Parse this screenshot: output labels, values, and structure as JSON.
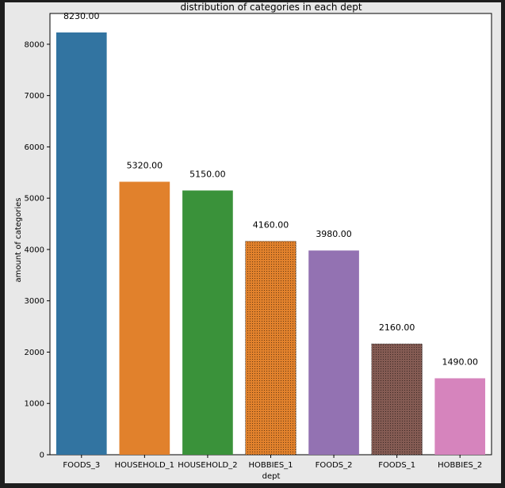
{
  "chart_data": {
    "type": "bar",
    "title": "distribution of categories in each dept",
    "xlabel": "dept",
    "ylabel": "amount of categories",
    "categories": [
      "FOODS_3",
      "HOUSEHOLD_1",
      "HOUSEHOLD_2",
      "HOBBIES_1",
      "FOODS_2",
      "FOODS_1",
      "HOBBIES_2"
    ],
    "values": [
      8230.0,
      5320.0,
      5150.0,
      4160.0,
      3980.0,
      2160.0,
      1490.0
    ],
    "data_labels": [
      "8230.00",
      "5320.00",
      "5150.00",
      "4160.00",
      "3980.00",
      "2160.00",
      "1490.00"
    ],
    "colors": [
      "#3274a1",
      "#e1812c",
      "#3a923a",
      "#e1812c",
      "#9372b2",
      "#845b53",
      "#d684bd"
    ],
    "hatched": [
      false,
      false,
      false,
      true,
      false,
      true,
      false
    ],
    "ylim": [
      0,
      8600
    ],
    "yticks": [
      0,
      1000,
      2000,
      3000,
      4000,
      5000,
      6000,
      7000,
      8000
    ],
    "grid": false,
    "legend": "none"
  }
}
